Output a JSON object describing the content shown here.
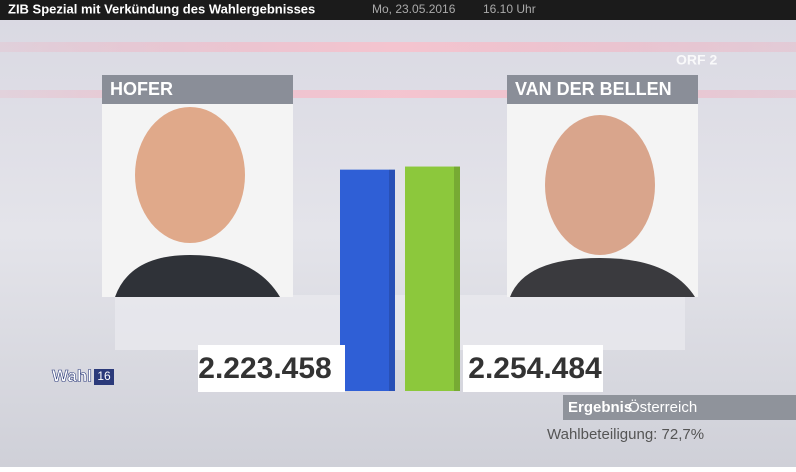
{
  "header": {
    "title": "ZIB Spezial mit Verkündung des Wahlergebnisses",
    "date": "Mo, 23.05.2016",
    "time": "16.10 Uhr"
  },
  "channel": "ORF 2",
  "logo": {
    "text": "Wahl",
    "number": "16"
  },
  "footer": {
    "label": "Ergebnis",
    "region": "Österreich",
    "turnout": "Wahlbeteiligung: 72,7%"
  },
  "chart_data": {
    "type": "bar",
    "categories": [
      "HOFER",
      "VAN DER BELLEN"
    ],
    "values": [
      2223458,
      2254484
    ],
    "value_labels": [
      "2.223.458",
      "2.254.484"
    ],
    "colors": [
      "#2f5fd6",
      "#8cc83c"
    ],
    "ylim": [
      0,
      2260000
    ]
  }
}
